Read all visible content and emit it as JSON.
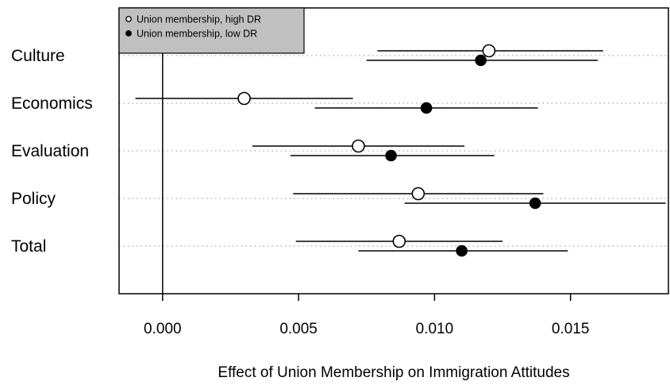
{
  "chart_data": {
    "type": "dot-whisker",
    "xlabel": "Effect of Union Membership on Immigration Attitudes",
    "xlim": [
      -0.0016,
      0.0186
    ],
    "xticks": [
      0.0,
      0.005,
      0.01,
      0.015
    ],
    "xtick_labels": [
      "0.000",
      "0.005",
      "0.010",
      "0.015"
    ],
    "reference_line_x": 0,
    "row_guides": "dotted",
    "legend_position": "top-left",
    "categories": [
      "Culture",
      "Economics",
      "Evaluation",
      "Policy",
      "Total"
    ],
    "series": [
      {
        "name": "Union membership, high DR",
        "marker": "open-circle",
        "estimates": [
          0.012,
          0.003,
          0.0072,
          0.0094,
          0.0087
        ],
        "lower": [
          0.0079,
          -0.001,
          0.0033,
          0.0048,
          0.0049
        ],
        "upper": [
          0.0162,
          0.007,
          0.0111,
          0.014,
          0.0125
        ]
      },
      {
        "name": "Union membership, low DR",
        "marker": "filled-circle",
        "estimates": [
          0.0117,
          0.0097,
          0.0084,
          0.0137,
          0.011
        ],
        "lower": [
          0.0075,
          0.0056,
          0.0047,
          0.0089,
          0.0072
        ],
        "upper": [
          0.016,
          0.0138,
          0.0122,
          0.0185,
          0.0149
        ]
      }
    ]
  }
}
